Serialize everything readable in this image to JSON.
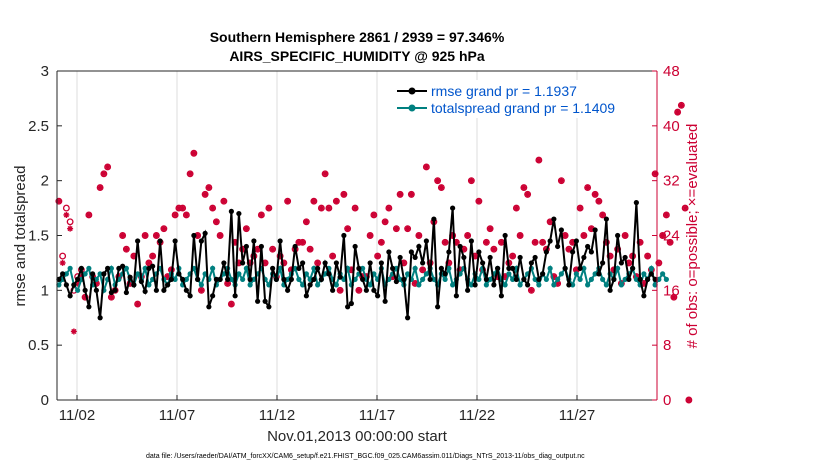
{
  "chart_data": {
    "type": "line",
    "title_line1": "Southern Hemisphere 2861 / 2939 = 97.346%",
    "title_line2": "AIRS_SPECIFIC_HUMIDITY @ 925 hPa",
    "xlabel": "Nov.01,2013 00:00:00 start",
    "ylabel_left": "rmse and totalspread",
    "ylabel_right": "# of obs: o=possible; ×=evaluated",
    "ylim_left": [
      0,
      3
    ],
    "ylim_right": [
      0,
      48
    ],
    "xlim_days": [
      0,
      30
    ],
    "left_ticks": [
      "0",
      "0.5",
      "1",
      "1.5",
      "2",
      "2.5",
      "3"
    ],
    "right_ticks": [
      "0",
      "8",
      "16",
      "24",
      "32",
      "40",
      "48"
    ],
    "x_ticks": [
      {
        "label": "11/02",
        "day": 1
      },
      {
        "label": "11/07",
        "day": 6
      },
      {
        "label": "11/12",
        "day": 11
      },
      {
        "label": "11/17",
        "day": 16
      },
      {
        "label": "11/22",
        "day": 21
      },
      {
        "label": "11/27",
        "day": 26
      }
    ],
    "legend": [
      {
        "name": "rmse grand pr = 1.1937",
        "color": "#000000"
      },
      {
        "name": "totalspread grand pr = 1.1409",
        "color": "#008080"
      }
    ],
    "colors": {
      "rmse": "#000000",
      "spread": "#008080",
      "obs": "#cc0033"
    },
    "series": [
      {
        "name": "rmse",
        "values": [
          1.1,
          1.15,
          1.05,
          0.95,
          1.05,
          1.1,
          1.2,
          1.0,
          0.85,
          1.15,
          1.0,
          0.75,
          1.15,
          1.2,
          0.98,
          1.0,
          1.2,
          1.22,
          0.98,
          1.12,
          1.05,
          1.45,
          1.08,
          0.99,
          1.2,
          1.22,
          1.0,
          1.45,
          1.0,
          1.05,
          1.1,
          1.45,
          1.15,
          1.1,
          1.0,
          0.95,
          1.5,
          1.1,
          1.45,
          1.52,
          0.85,
          0.95,
          1.1,
          1.1,
          1.25,
          1.1,
          1.72,
          0.95,
          1.7,
          1.25,
          1.4,
          1.1,
          1.45,
          0.9,
          1.4,
          0.9,
          0.85,
          1.2,
          1.1,
          1.45,
          1.1,
          1.0,
          1.1,
          1.4,
          1.2,
          1.25,
          0.95,
          1.05,
          1.1,
          1.2,
          1.1,
          1.25,
          1.15,
          1.0,
          1.25,
          1.12,
          1.5,
          0.85,
          0.88,
          1.4,
          1.2,
          1.1,
          1.0,
          1.25,
          1.0,
          0.95,
          1.25,
          0.9,
          1.35,
          1.2,
          1.08,
          1.3,
          1.1,
          0.75,
          1.35,
          1.3,
          1.4,
          1.25,
          1.45,
          1.1,
          1.65,
          0.85,
          1.2,
          1.15,
          1.35,
          1.75,
          0.95,
          1.4,
          1.3,
          1.0,
          1.45,
          1.05,
          1.35,
          1.25,
          1.1,
          1.3,
          1.05,
          1.2,
          0.95,
          1.5,
          1.2,
          1.2,
          1.1,
          1.3,
          1.1,
          1.05,
          1.25,
          1.3,
          1.1,
          1.15,
          1.35,
          1.45,
          1.65,
          1.4,
          1.55,
          1.2,
          1.05,
          1.35,
          1.45,
          1.2,
          1.3,
          1.4,
          1.35,
          1.55,
          1.15,
          1.25,
          1.65,
          1.0,
          1.1,
          1.5,
          1.25,
          1.3,
          1.1,
          1.2,
          1.8,
          1.1,
          0.95,
          1.1,
          1.15,
          1.1
        ]
      },
      {
        "name": "totalspread",
        "values": [
          1.05,
          1.1,
          1.15,
          1.2,
          1.05,
          1.0,
          1.1,
          1.15,
          1.2,
          1.05,
          1.1,
          1.15,
          1.0,
          1.1,
          1.2,
          1.05,
          1.1,
          1.15,
          1.2,
          1.1,
          1.05,
          1.15,
          1.1,
          1.2,
          1.05,
          1.1,
          1.15,
          1.2,
          1.1,
          1.05,
          1.15,
          1.1,
          1.2,
          1.05,
          1.1,
          1.15,
          1.2,
          1.1,
          1.05,
          1.15,
          1.1,
          1.2,
          1.05,
          1.1,
          1.15,
          1.2,
          1.1,
          1.05,
          1.15,
          1.1,
          1.2,
          1.05,
          1.1,
          1.15,
          1.2,
          1.1,
          1.05,
          1.15,
          1.1,
          1.2,
          1.05,
          1.1,
          1.15,
          1.2,
          1.1,
          1.05,
          1.15,
          1.1,
          1.2,
          1.05,
          1.1,
          1.15,
          1.2,
          1.1,
          1.05,
          1.15,
          1.1,
          1.2,
          1.05,
          1.1,
          1.15,
          1.2,
          1.1,
          1.05,
          1.15,
          1.1,
          1.2,
          1.05,
          1.1,
          1.15,
          1.2,
          1.1,
          1.05,
          1.15,
          1.1,
          1.2,
          1.05,
          1.1,
          1.15,
          1.2,
          1.1,
          1.05,
          1.15,
          1.1,
          1.2,
          1.05,
          1.1,
          1.15,
          1.2,
          1.1,
          1.05,
          1.15,
          1.1,
          1.2,
          1.05,
          1.1,
          1.15,
          1.2,
          1.1,
          1.05,
          1.15,
          1.1,
          1.2,
          1.05,
          1.1,
          1.15,
          1.2,
          1.1,
          1.05,
          1.15,
          1.1,
          1.2,
          1.05,
          1.1,
          1.15,
          1.2,
          1.1,
          1.05,
          1.15,
          1.1,
          1.2,
          1.05,
          1.1,
          1.15,
          1.2,
          1.1,
          1.05,
          1.15,
          1.1,
          1.2,
          1.05,
          1.1,
          1.15,
          1.2,
          1.1,
          1.05,
          1.15,
          1.1,
          1.2,
          1.05,
          1.1,
          1.15,
          1.1
        ]
      },
      {
        "name": "obs_possible",
        "values": [
          29,
          21,
          28,
          26,
          16,
          18,
          19,
          15,
          27,
          18,
          17,
          31,
          33,
          34,
          15,
          16,
          18,
          24,
          22,
          17,
          21,
          14,
          18,
          24,
          20,
          21,
          24,
          23,
          25,
          18,
          19,
          27,
          28,
          28,
          27,
          33,
          36,
          24,
          16,
          30,
          31,
          28,
          26,
          24,
          29,
          17,
          14,
          23,
          20,
          22,
          25,
          20,
          21,
          22,
          27,
          20,
          28,
          22,
          18,
          21,
          20,
          29,
          19,
          22,
          23,
          23,
          26,
          22,
          29,
          20,
          28,
          33,
          28,
          21,
          29,
          16,
          30,
          25,
          19,
          28,
          16,
          18,
          18,
          24,
          27,
          21,
          23,
          26,
          28,
          18,
          25,
          30,
          20,
          25,
          30,
          17,
          24,
          19,
          34,
          20,
          26,
          32,
          31,
          23,
          20,
          24,
          23,
          19,
          22,
          24,
          32,
          21,
          29,
          19,
          23,
          25,
          22,
          18,
          23,
          18,
          20,
          21,
          28,
          24,
          31,
          30,
          16,
          23,
          35,
          23,
          22,
          26,
          18,
          17,
          32,
          24,
          22,
          23,
          19,
          28,
          24,
          31,
          25,
          30,
          29,
          27,
          23,
          21,
          19,
          22,
          17,
          24,
          20,
          21,
          18,
          23,
          17,
          21,
          19,
          33,
          20,
          24,
          27,
          23,
          15,
          42,
          43,
          28,
          0
        ]
      },
      {
        "name": "obs_evaluated",
        "values": [
          29,
          20,
          27,
          25,
          10,
          17,
          18,
          15,
          27,
          18,
          17,
          31,
          33,
          34,
          15,
          16,
          18,
          24,
          22,
          17,
          21,
          14,
          18,
          24,
          20,
          21,
          24,
          23,
          25,
          18,
          19,
          27,
          28,
          28,
          27,
          33,
          36,
          24,
          16,
          30,
          31,
          28,
          26,
          24,
          29,
          17,
          14,
          23,
          20,
          22,
          25,
          20,
          21,
          22,
          27,
          20,
          28,
          22,
          18,
          21,
          20,
          29,
          19,
          22,
          23,
          23,
          26,
          22,
          29,
          20,
          28,
          33,
          28,
          21,
          29,
          16,
          30,
          25,
          19,
          28,
          16,
          18,
          18,
          24,
          27,
          21,
          23,
          26,
          28,
          18,
          25,
          30,
          20,
          25,
          30,
          17,
          24,
          19,
          34,
          20,
          26,
          32,
          31,
          23,
          20,
          24,
          23,
          19,
          22,
          24,
          32,
          21,
          29,
          19,
          23,
          25,
          22,
          18,
          23,
          18,
          20,
          21,
          28,
          24,
          31,
          30,
          16,
          23,
          35,
          23,
          22,
          26,
          18,
          17,
          32,
          24,
          22,
          23,
          19,
          28,
          24,
          31,
          25,
          30,
          29,
          27,
          23,
          21,
          19,
          22,
          17,
          24,
          20,
          21,
          18,
          23,
          17,
          21,
          19,
          33,
          20,
          24,
          27,
          23,
          15,
          42,
          43,
          28,
          0
        ]
      }
    ]
  },
  "footer": {
    "data_file": "data file: /Users/raeder/DAI/ATM_forcXX/CAM6_setup/f.e21.FHIST_BGC.f09_025.CAM6assim.011/Diags_NTrS_2013-11/obs_diag_output.nc"
  }
}
